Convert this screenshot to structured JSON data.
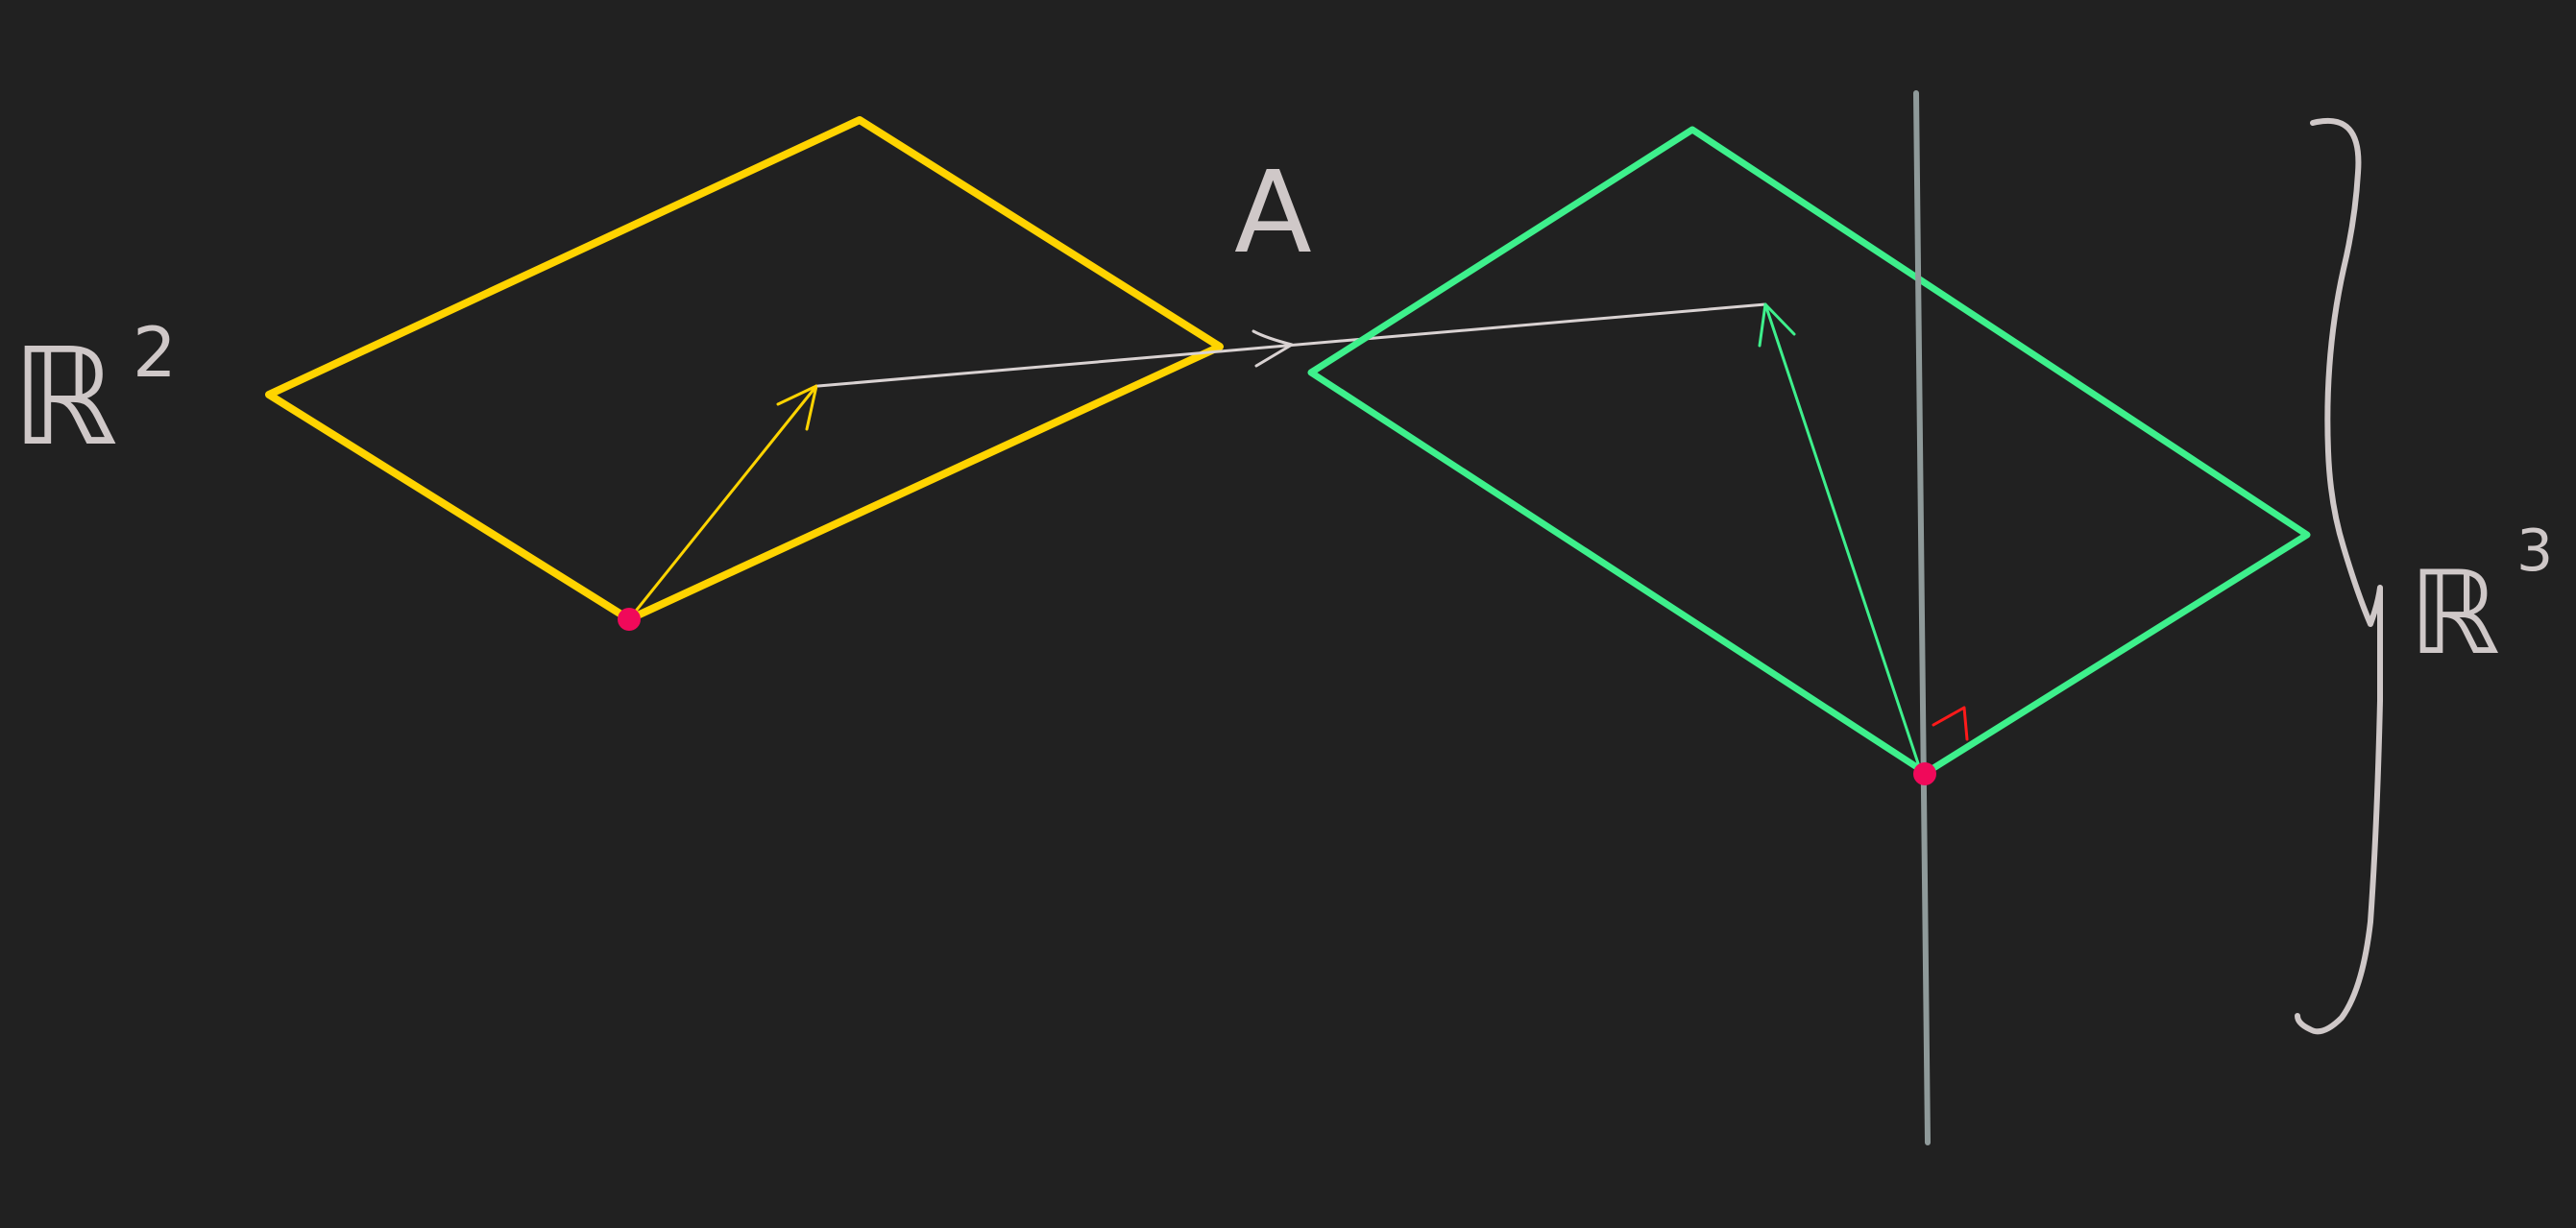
{
  "labels": {
    "domain": "ℝ",
    "domain_exp": "2",
    "map": "A",
    "codomain": "ℝ",
    "codomain_exp": "3"
  },
  "colors": {
    "background": "#212121",
    "domain_plane": "#ffd400",
    "codomain_plane": "#3ef08c",
    "map_arrow": "#d9d2d2",
    "normal_line": "#8f9a9a",
    "point": "#f0095a",
    "right_angle": "#ff1a1a",
    "handwriting": "#cfc8c8"
  }
}
